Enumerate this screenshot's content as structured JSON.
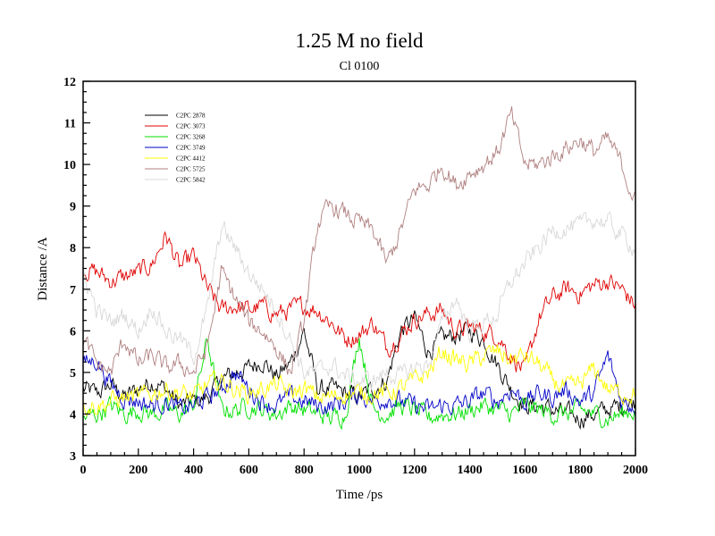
{
  "chart_data": {
    "type": "line",
    "title": "1.25 M no field",
    "subtitle": "Cl 0100",
    "xlabel": "Time /ps",
    "ylabel": "Distance /A",
    "xlim": [
      0,
      2000
    ],
    "ylim": [
      3,
      12
    ],
    "xticks": [
      0,
      200,
      400,
      600,
      800,
      1000,
      1200,
      1400,
      1600,
      1800,
      2000
    ],
    "yticks": [
      3,
      4,
      5,
      6,
      7,
      8,
      9,
      10,
      11,
      12
    ],
    "xtick_labels": [
      "0",
      "200",
      "400",
      "600",
      "800",
      "1000",
      "1200",
      "1400",
      "1600",
      "1800",
      "2000"
    ],
    "ytick_labels": [
      "3",
      "4",
      "5",
      "6",
      "7",
      "8",
      "9",
      "10",
      "11",
      "12"
    ],
    "legend_position": "top-left",
    "grid": false,
    "x": [
      0,
      50,
      100,
      150,
      200,
      250,
      300,
      350,
      400,
      450,
      500,
      550,
      600,
      650,
      700,
      750,
      800,
      850,
      900,
      950,
      1000,
      1050,
      1100,
      1150,
      1200,
      1250,
      1300,
      1350,
      1400,
      1450,
      1500,
      1550,
      1600,
      1650,
      1700,
      1750,
      1800,
      1850,
      1900,
      1950,
      2000
    ],
    "series": [
      {
        "name": "C2PC 2878",
        "color": "#000000",
        "values": [
          4.6,
          4.5,
          4.7,
          4.4,
          4.6,
          4.8,
          4.6,
          4.2,
          4.3,
          4.4,
          4.8,
          5.0,
          5.1,
          5.3,
          4.9,
          5.2,
          6.0,
          4.6,
          4.6,
          4.5,
          4.4,
          4.6,
          4.8,
          6.0,
          6.3,
          5.5,
          5.8,
          5.9,
          6.0,
          5.8,
          5.2,
          4.6,
          4.2,
          4.2,
          4.1,
          4.0,
          3.9,
          4.0,
          4.1,
          4.2,
          4.3
        ]
      },
      {
        "name": "C2PC 3073",
        "color": "#e00000",
        "values": [
          7.5,
          7.4,
          7.2,
          7.3,
          7.4,
          7.6,
          8.3,
          7.5,
          7.8,
          7.0,
          6.5,
          6.6,
          6.5,
          6.6,
          6.4,
          6.5,
          6.6,
          6.5,
          6.2,
          5.8,
          5.9,
          6.2,
          5.6,
          5.9,
          6.3,
          6.4,
          6.5,
          6.0,
          6.1,
          6.0,
          5.9,
          5.4,
          5.0,
          6.3,
          6.8,
          7.0,
          6.9,
          7.1,
          7.2,
          7.0,
          6.6
        ]
      },
      {
        "name": "C2PC 3268",
        "color": "#00e000",
        "values": [
          3.9,
          4.0,
          4.2,
          4.0,
          4.1,
          4.0,
          4.1,
          4.0,
          4.2,
          5.8,
          4.1,
          4.1,
          4.2,
          4.1,
          4.0,
          4.2,
          4.1,
          4.0,
          3.9,
          4.0,
          5.9,
          4.1,
          4.0,
          4.2,
          4.1,
          3.9,
          4.0,
          4.0,
          4.1,
          4.2,
          4.1,
          4.0,
          4.2,
          4.1,
          4.0,
          4.0,
          4.1,
          4.0,
          3.9,
          4.0,
          4.1
        ]
      },
      {
        "name": "C2PC 3749",
        "color": "#0000c8",
        "values": [
          5.2,
          5.3,
          4.7,
          4.4,
          4.3,
          4.2,
          4.3,
          4.1,
          4.2,
          4.4,
          4.6,
          5.0,
          4.6,
          4.3,
          4.2,
          4.4,
          4.3,
          4.2,
          4.2,
          4.3,
          4.5,
          4.3,
          4.4,
          4.3,
          4.2,
          4.1,
          4.2,
          4.2,
          4.3,
          4.5,
          4.3,
          4.6,
          4.3,
          4.5,
          4.4,
          4.6,
          4.3,
          4.5,
          5.4,
          4.3,
          4.2
        ]
      },
      {
        "name": "C2PC 4412",
        "color": "#ffff00",
        "values": [
          4.2,
          4.2,
          4.3,
          4.4,
          4.4,
          4.5,
          4.6,
          4.5,
          4.4,
          4.7,
          4.8,
          4.6,
          4.5,
          4.6,
          4.7,
          4.5,
          4.6,
          4.4,
          4.4,
          4.5,
          4.5,
          4.5,
          4.5,
          4.6,
          4.8,
          5.0,
          5.5,
          5.3,
          5.2,
          5.4,
          5.5,
          5.3,
          5.4,
          5.2,
          4.8,
          4.6,
          4.7,
          5.1,
          4.6,
          4.5,
          4.5
        ]
      },
      {
        "name": "C2PC 5725",
        "color": "#b08080",
        "values": [
          5.8,
          5.2,
          5.0,
          5.8,
          5.2,
          5.4,
          5.1,
          5.2,
          5.0,
          5.6,
          7.4,
          6.8,
          6.2,
          6.0,
          5.6,
          5.0,
          6.2,
          8.6,
          9.0,
          8.8,
          8.6,
          8.4,
          7.6,
          8.4,
          9.4,
          9.5,
          10.0,
          9.5,
          9.8,
          10.0,
          10.3,
          11.2,
          10.0,
          10.0,
          10.2,
          10.4,
          10.6,
          10.3,
          10.6,
          10.0,
          9.1
        ]
      },
      {
        "name": "C2PC 5842",
        "color": "#d8d8d8",
        "values": [
          7.4,
          6.5,
          6.2,
          6.4,
          6.0,
          6.6,
          6.0,
          5.8,
          5.4,
          6.5,
          8.5,
          8.0,
          7.4,
          7.0,
          6.5,
          5.8,
          5.0,
          5.0,
          5.2,
          4.9,
          4.8,
          4.8,
          5.0,
          4.9,
          5.1,
          5.2,
          6.2,
          6.8,
          6.0,
          6.2,
          6.4,
          7.2,
          7.6,
          8.0,
          8.4,
          8.5,
          8.5,
          8.7,
          8.6,
          8.3,
          8.0
        ]
      }
    ]
  }
}
